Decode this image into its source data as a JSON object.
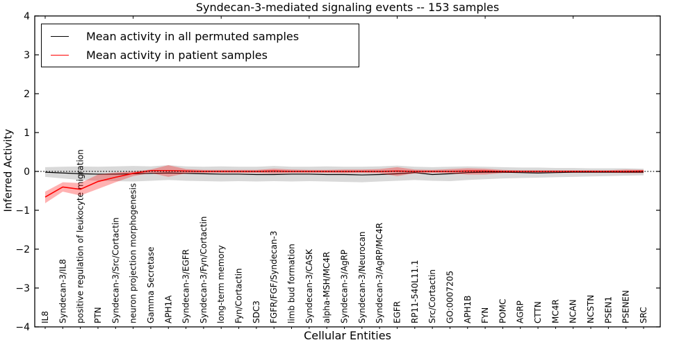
{
  "title": "Syndecan-3-mediated signaling events -- 153 samples",
  "legend": [
    {
      "label": "Mean activity in all permuted samples",
      "color": "#000000"
    },
    {
      "label": "Mean activity in patient samples",
      "color": "#ff0000"
    }
  ],
  "chart_data": {
    "type": "line",
    "title": "Syndecan-3-mediated signaling events -- 153 samples",
    "xlabel": "Cellular Entities",
    "ylabel": "Inferred Activity",
    "ylim": [
      -4,
      4
    ],
    "yticks": [
      4,
      3,
      2,
      1,
      0,
      -1,
      -2,
      -3,
      -4
    ],
    "grid": false,
    "legend_position": "upper left",
    "zero_line": {
      "y": 0,
      "style": "dotted",
      "color": "#000000"
    },
    "categories": [
      "IL8",
      "Syndecan-3/IL8",
      "positive regulation of leukocyte migration",
      "PTN",
      "Syndecan-3/Src/Cortactin",
      "neuron projection morphogenesis",
      "Gamma Secretase",
      "APH1A",
      "Syndecan-3/EGFR",
      "Syndecan-3/Fyn/Cortactin",
      "long-term memory",
      "Fyn/Cortactin",
      "SDC3",
      "FGFR/FGF/Syndecan-3",
      "limb bud formation",
      "Syndecan-3/CASK",
      "alpha-MSH/MC4R",
      "Syndecan-3/AgRP",
      "Syndecan-3/Neurocan",
      "Syndecan-3/AgRP/MC4R",
      "EGFR",
      "RP11-540L11.1",
      "Src/Cortactin",
      "GO:0007205",
      "APH1B",
      "FYN",
      "POMC",
      "AGRP",
      "CTTN",
      "MC4R",
      "NCAN",
      "NCSTN",
      "PSEN1",
      "PSENEN",
      "SRC"
    ],
    "series": [
      {
        "name": "Mean activity in all permuted samples",
        "color": "#000000",
        "band_color": "rgba(0,0,0,0.15)",
        "values": [
          -0.02,
          -0.04,
          -0.06,
          -0.07,
          -0.07,
          -0.06,
          -0.05,
          -0.04,
          -0.05,
          -0.06,
          -0.07,
          -0.07,
          -0.08,
          -0.08,
          -0.07,
          -0.07,
          -0.08,
          -0.08,
          -0.09,
          -0.08,
          -0.06,
          -0.03,
          -0.08,
          -0.06,
          -0.03,
          -0.02,
          -0.02,
          -0.03,
          -0.04,
          -0.03,
          -0.02,
          -0.02,
          -0.02,
          -0.02,
          -0.02
        ],
        "band_high": [
          0.11,
          0.12,
          0.13,
          0.12,
          0.13,
          0.14,
          0.13,
          0.16,
          0.13,
          0.12,
          0.13,
          0.12,
          0.12,
          0.14,
          0.12,
          0.12,
          0.13,
          0.12,
          0.12,
          0.13,
          0.15,
          0.12,
          0.11,
          0.12,
          0.13,
          0.12,
          0.11,
          0.1,
          0.1,
          0.09,
          0.09,
          0.08,
          0.08,
          0.08,
          0.07
        ],
        "band_low": [
          -0.14,
          -0.18,
          -0.22,
          -0.24,
          -0.25,
          -0.26,
          -0.24,
          -0.22,
          -0.24,
          -0.25,
          -0.26,
          -0.25,
          -0.26,
          -0.25,
          -0.26,
          -0.25,
          -0.26,
          -0.27,
          -0.28,
          -0.26,
          -0.24,
          -0.22,
          -0.24,
          -0.25,
          -0.22,
          -0.2,
          -0.18,
          -0.17,
          -0.16,
          -0.15,
          -0.14,
          -0.13,
          -0.12,
          -0.11,
          -0.1
        ]
      },
      {
        "name": "Mean activity in patient samples",
        "color": "#ff0000",
        "band_color": "rgba(255,0,0,0.3)",
        "values": [
          -0.66,
          -0.4,
          -0.46,
          -0.26,
          -0.15,
          -0.05,
          0.02,
          0.02,
          0.01,
          0.0,
          0.0,
          0.0,
          0.0,
          0.01,
          0.0,
          0.0,
          0.0,
          0.0,
          0.0,
          0.0,
          0.01,
          0.0,
          0.0,
          0.0,
          0.01,
          0.01,
          0.0,
          0.0,
          0.0,
          0.0,
          0.0,
          0.0,
          0.0,
          0.0,
          0.01
        ],
        "band_high": [
          -0.52,
          -0.28,
          -0.3,
          -0.08,
          -0.03,
          0.0,
          0.05,
          0.16,
          0.06,
          0.04,
          0.04,
          0.04,
          0.04,
          0.07,
          0.05,
          0.04,
          0.04,
          0.05,
          0.05,
          0.06,
          0.11,
          0.05,
          0.04,
          0.06,
          0.08,
          0.07,
          0.04,
          0.03,
          0.03,
          0.03,
          0.03,
          0.03,
          0.03,
          0.05,
          0.04
        ],
        "band_low": [
          -0.82,
          -0.52,
          -0.62,
          -0.45,
          -0.28,
          -0.12,
          -0.04,
          -0.14,
          -0.05,
          -0.04,
          -0.04,
          -0.04,
          -0.04,
          -0.06,
          -0.04,
          -0.04,
          -0.04,
          -0.05,
          -0.04,
          -0.05,
          -0.12,
          -0.05,
          -0.04,
          -0.05,
          -0.08,
          -0.08,
          -0.04,
          -0.03,
          -0.03,
          -0.03,
          -0.03,
          -0.03,
          -0.03,
          -0.04,
          -0.04
        ]
      }
    ]
  }
}
